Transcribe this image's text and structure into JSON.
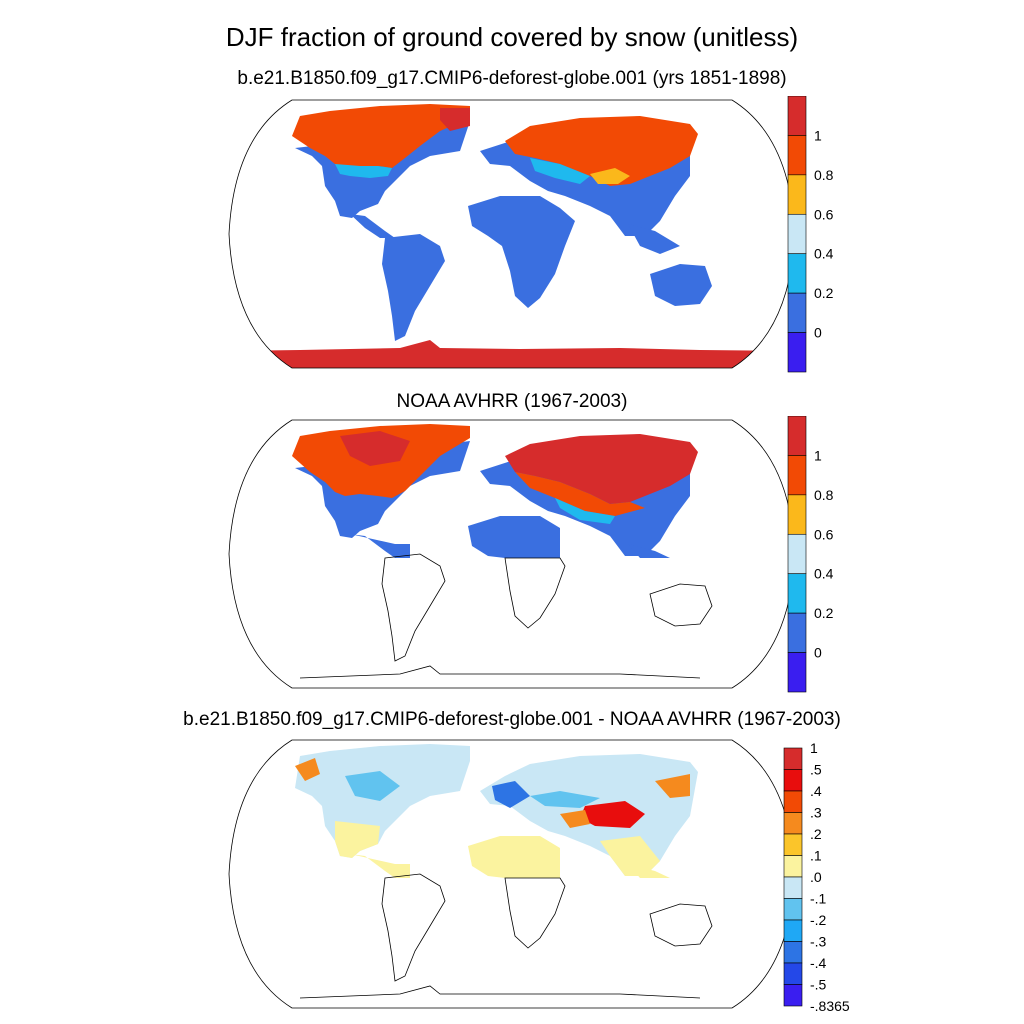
{
  "title": "DJF fraction of ground covered by snow (unitless)",
  "colors": {
    "land": "#3a6fe0",
    "snow_high": "#f24a05",
    "snow_top": "#d62c2c",
    "mid_cyan": "#1fb9ee",
    "light_cyan": "#c9e7f5",
    "yellow": "#fbf39f",
    "orange": "#f58a1e",
    "coast": "#000000"
  },
  "chart_data": [
    {
      "type": "heatmap",
      "title": "b.e21.B1850.f09_g17.CMIP6-deforest-globe.001 (yrs 1851-1898)",
      "projection": "Robinson",
      "colorbar": {
        "labels": [
          "1",
          "0.8",
          "0.6",
          "0.4",
          "0.2",
          "0"
        ],
        "colors": [
          "#d62c2c",
          "#f24a05",
          "#fbb81b",
          "#c9e7f5",
          "#1fb9ee",
          "#3a6fe0",
          "#3a1ef0"
        ]
      },
      "regions": [
        "North America",
        "Eurasia",
        "South America",
        "Africa",
        "Australia",
        "Antarctica"
      ]
    },
    {
      "type": "heatmap",
      "title": "NOAA AVHRR (1967-2003)",
      "projection": "Robinson",
      "colorbar": {
        "labels": [
          "1",
          "0.8",
          "0.6",
          "0.4",
          "0.2",
          "0"
        ],
        "colors": [
          "#d62c2c",
          "#f24a05",
          "#fbb81b",
          "#c9e7f5",
          "#1fb9ee",
          "#3a6fe0",
          "#3a1ef0"
        ]
      },
      "coverage": "Northern Hemisphere only (to ~15N)"
    },
    {
      "type": "heatmap",
      "title": "b.e21.B1850.f09_g17.CMIP6-deforest-globe.001 - NOAA AVHRR (1967-2003)",
      "projection": "Robinson",
      "colorbar": {
        "labels": [
          "1",
          ".5",
          ".4",
          ".3",
          ".2",
          ".1",
          ".0",
          "-.1",
          "-.2",
          "-.3",
          "-.4",
          "-.5",
          "-.8365"
        ],
        "colors": [
          "#d62c2c",
          "#e80d0d",
          "#f24a05",
          "#f58a1e",
          "#fbc52a",
          "#fbf39f",
          "#c9e7f5",
          "#61c3ef",
          "#1fa8f5",
          "#2d74e4",
          "#2448e8",
          "#3a1ef0"
        ]
      }
    }
  ]
}
